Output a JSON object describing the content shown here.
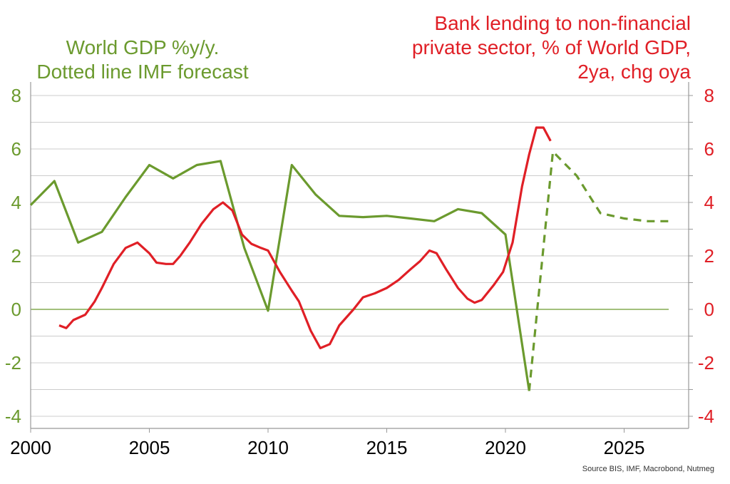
{
  "chart_data": {
    "type": "line",
    "title_left": [
      "World GDP %y/y.",
      "Dotted line IMF forecast"
    ],
    "title_right": [
      "Bank lending to non-financial",
      "private sector, % of World GDP,",
      "2ya, chg oya"
    ],
    "source": "Source BIS, IMF, Macrobond, Nutmeg",
    "xlim": [
      2000,
      2029.5
    ],
    "ylim": [
      -4.5,
      8.5
    ],
    "x_ticks": [
      "2000",
      "2005",
      "2010",
      "2015",
      "2020",
      "2025"
    ],
    "y_ticks_left": [
      "8",
      "6",
      "4",
      "2",
      "0",
      "-2",
      "-4"
    ],
    "y_ticks_right": [
      "8",
      "6",
      "4",
      "2",
      "0",
      "-2",
      "-4"
    ],
    "grid": true,
    "colors": {
      "gdp": "#6b9a2e",
      "lending": "#e01f26",
      "grid": "#cccccc",
      "axis": "#999999"
    },
    "series": [
      {
        "id": "gdp_actual",
        "color": "#6b9a2e",
        "style": "solid",
        "x": [
          2000,
          2001,
          2002,
          2003,
          2004,
          2005,
          2006,
          2007,
          2008,
          2009,
          2010,
          2011,
          2012,
          2013,
          2014,
          2015,
          2016,
          2017,
          2018,
          2019,
          2020,
          2021
        ],
        "y": [
          3.9,
          4.8,
          2.5,
          2.9,
          4.2,
          5.4,
          4.9,
          5.4,
          5.55,
          2.3,
          -0.05,
          5.4,
          4.3,
          3.5,
          3.45,
          3.5,
          3.4,
          3.3,
          3.75,
          3.6,
          2.8,
          -3.05
        ]
      },
      {
        "id": "gdp_forecast",
        "color": "#6b9a2e",
        "style": "dashed",
        "x": [
          2021,
          2022,
          2023,
          2024,
          2025,
          2026,
          2027
        ],
        "y": [
          -3.05,
          5.9,
          5.0,
          3.6,
          3.4,
          3.3,
          3.3
        ]
      },
      {
        "id": "bank_lending",
        "color": "#e01f26",
        "style": "solid",
        "x": [
          2001.2,
          2001.5,
          2001.8,
          2002.3,
          2002.7,
          2003.0,
          2003.5,
          2004.0,
          2004.5,
          2005.0,
          2005.3,
          2005.7,
          2006.0,
          2006.3,
          2006.7,
          2007.2,
          2007.7,
          2008.1,
          2008.5,
          2008.9,
          2009.3,
          2009.7,
          2010.0,
          2010.5,
          2011.0,
          2011.3,
          2011.8,
          2012.2,
          2012.6,
          2013.0,
          2013.6,
          2014.0,
          2014.5,
          2015.0,
          2015.5,
          2016.0,
          2016.4,
          2016.8,
          2017.1,
          2017.5,
          2018.0,
          2018.4,
          2018.7,
          2019.0,
          2019.5,
          2019.9,
          2020.3,
          2020.7,
          2021.0,
          2021.3,
          2021.6,
          2021.9
        ],
        "y": [
          -0.6,
          -0.7,
          -0.4,
          -0.2,
          0.3,
          0.8,
          1.7,
          2.3,
          2.5,
          2.1,
          1.75,
          1.7,
          1.7,
          2.0,
          2.5,
          3.2,
          3.75,
          4.0,
          3.7,
          2.8,
          2.45,
          2.3,
          2.2,
          1.4,
          0.7,
          0.3,
          -0.8,
          -1.45,
          -1.3,
          -0.6,
          0.0,
          0.45,
          0.6,
          0.8,
          1.1,
          1.5,
          1.8,
          2.2,
          2.1,
          1.5,
          0.8,
          0.4,
          0.25,
          0.35,
          0.9,
          1.4,
          2.5,
          4.6,
          5.8,
          6.8,
          6.8,
          6.3
        ]
      }
    ]
  }
}
